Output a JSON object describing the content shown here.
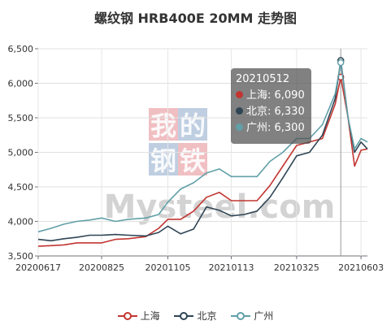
{
  "title": "螺纹钢 HRB400E 20MM 走势图",
  "watermark": {
    "brand_chars": [
      "我",
      "的",
      "钢",
      "铁"
    ],
    "brand_colors": [
      "#e38b8f",
      "#8aa6c9"
    ],
    "site": "Mysteel.com"
  },
  "tooltip": {
    "date": "20210512",
    "rows": [
      {
        "label": "上海: 6,090",
        "color": "#c23531"
      },
      {
        "label": "北京: 6,330",
        "color": "#2f4554"
      },
      {
        "label": "广州: 6,300",
        "color": "#61a0a8"
      }
    ]
  },
  "chart_data": {
    "type": "line",
    "title": "螺纹钢 HRB400E 20MM 走势图",
    "ylim": [
      3500,
      6500
    ],
    "yticks": [
      "3,500",
      "4,000",
      "4,500",
      "5,000",
      "5,500",
      "6,000",
      "6,500"
    ],
    "xticks": [
      "20200617",
      "20200825",
      "20201105",
      "20210113",
      "20210325",
      "20210603"
    ],
    "grid": true,
    "legend_position": "bottom",
    "x": [
      "20200617",
      "20200701",
      "20200715",
      "20200729",
      "20200812",
      "20200825",
      "20200909",
      "20200923",
      "20201012",
      "20201026",
      "20201105",
      "20201119",
      "20201203",
      "20201217",
      "20201231",
      "20210113",
      "20210127",
      "20210210",
      "20210224",
      "20210310",
      "20210325",
      "20210408",
      "20210422",
      "20210506",
      "20210512",
      "20210520",
      "20210527",
      "20210603",
      "20210610"
    ],
    "series": [
      {
        "name": "上海",
        "color": "#c23531",
        "values": [
          3640,
          3650,
          3660,
          3690,
          3690,
          3690,
          3740,
          3750,
          3780,
          3900,
          4030,
          4030,
          4150,
          4350,
          4420,
          4300,
          4300,
          4300,
          4520,
          4800,
          5100,
          5150,
          5200,
          5700,
          6090,
          5500,
          4800,
          5030,
          5050
        ]
      },
      {
        "name": "北京",
        "color": "#2f4554",
        "values": [
          3740,
          3720,
          3750,
          3770,
          3800,
          3800,
          3810,
          3800,
          3790,
          3840,
          3930,
          3820,
          3890,
          4210,
          4160,
          4080,
          4100,
          4150,
          4350,
          4630,
          4950,
          5000,
          5250,
          5780,
          6330,
          5500,
          5000,
          5150,
          5050
        ]
      },
      {
        "name": "广州",
        "color": "#61a0a8",
        "values": [
          3850,
          3900,
          3960,
          4000,
          4020,
          4050,
          4000,
          4030,
          4050,
          4100,
          4280,
          4470,
          4560,
          4700,
          4760,
          4650,
          4650,
          4650,
          4870,
          5000,
          5200,
          5200,
          5400,
          5850,
          6300,
          5500,
          5050,
          5200,
          5150
        ]
      }
    ]
  }
}
